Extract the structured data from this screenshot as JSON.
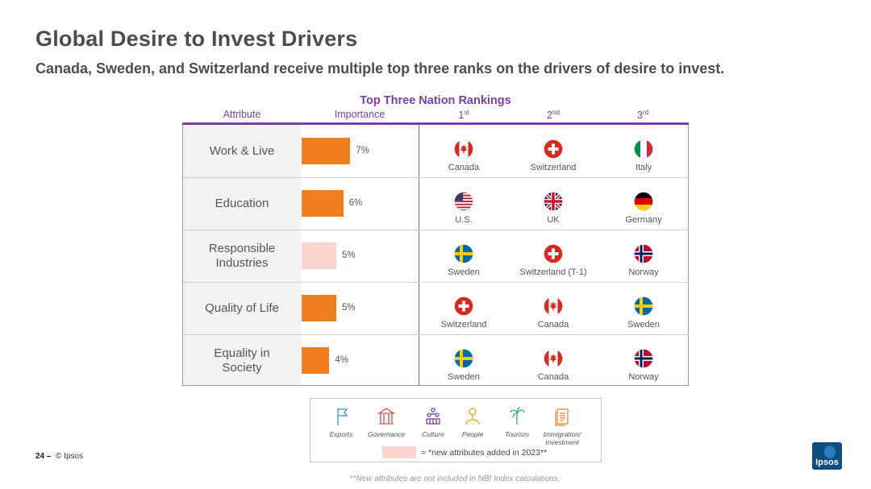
{
  "header": {
    "title": "Global Desire to Invest Drivers",
    "subtitle": "Canada, Sweden, and Switzerland receive multiple top three ranks on the drivers of desire to invest."
  },
  "table": {
    "title": "Top Three Nation Rankings",
    "columns": {
      "attribute": "Attribute",
      "importance": "Importance",
      "first_num": "1",
      "first_sup": "st",
      "second_num": "2",
      "second_sup": "nd",
      "third_num": "3",
      "third_sup": "rd"
    },
    "rows": [
      {
        "attribute": "Work & Live",
        "importance": "7%",
        "importance_value": 7,
        "is_new": false,
        "first": {
          "country": "Canada",
          "flag": "canada-flag"
        },
        "second": {
          "country": "Switzerland",
          "flag": "switzerland-flag"
        },
        "third": {
          "country": "Italy",
          "flag": "italy-flag"
        }
      },
      {
        "attribute": "Education",
        "importance": "6%",
        "importance_value": 6,
        "is_new": false,
        "first": {
          "country": "U.S.",
          "flag": "usa-flag"
        },
        "second": {
          "country": "UK",
          "flag": "uk-flag"
        },
        "third": {
          "country": "Germany",
          "flag": "germany-flag"
        }
      },
      {
        "attribute": "Responsible Industries",
        "importance": "5%",
        "importance_value": 5,
        "is_new": true,
        "first": {
          "country": "Sweden",
          "flag": "sweden-flag"
        },
        "second": {
          "country": "Switzerland (T-1)",
          "flag": "switzerland-flag"
        },
        "third": {
          "country": "Norway",
          "flag": "norway-flag"
        }
      },
      {
        "attribute": "Quality of Life",
        "importance": "5%",
        "importance_value": 5,
        "is_new": false,
        "first": {
          "country": "Switzerland",
          "flag": "switzerland-flag"
        },
        "second": {
          "country": "Canada",
          "flag": "canada-flag"
        },
        "third": {
          "country": "Sweden",
          "flag": "sweden-flag"
        }
      },
      {
        "attribute": "Equality in Society",
        "importance": "4%",
        "importance_value": 4,
        "is_new": false,
        "first": {
          "country": "Sweden",
          "flag": "sweden-flag"
        },
        "second": {
          "country": "Canada",
          "flag": "canada-flag"
        },
        "third": {
          "country": "Norway",
          "flag": "norway-flag"
        }
      }
    ]
  },
  "legend": {
    "items": [
      {
        "label": "Exports",
        "icon": "flag-icon",
        "color": "#3d8fd1"
      },
      {
        "label": "Governance",
        "icon": "building-icon",
        "color": "#c0504d"
      },
      {
        "label": "Culture",
        "icon": "people-group-icon",
        "color": "#7b3fa0"
      },
      {
        "label": "People",
        "icon": "person-icon",
        "color": "#e6a817"
      },
      {
        "label": "Tourism",
        "icon": "palm-tree-icon",
        "color": "#3aa58c"
      },
      {
        "label": "Immigration/ Investment",
        "icon": "document-icon",
        "color": "#e08a2e"
      }
    ],
    "new_attributes_note": "= *new attributes added in 2023**"
  },
  "footer": {
    "footnote": "**New attributes are not included in NBI Index calculations.",
    "page_number": "24",
    "page_separator": "–",
    "copyright": "© Ipsos",
    "logo_text": "Ipsos"
  },
  "colors": {
    "accent": "#7b3fa0",
    "bar": "#f07f1f",
    "bar_new": "#fdd5ce",
    "text": "#4d4d4d"
  }
}
